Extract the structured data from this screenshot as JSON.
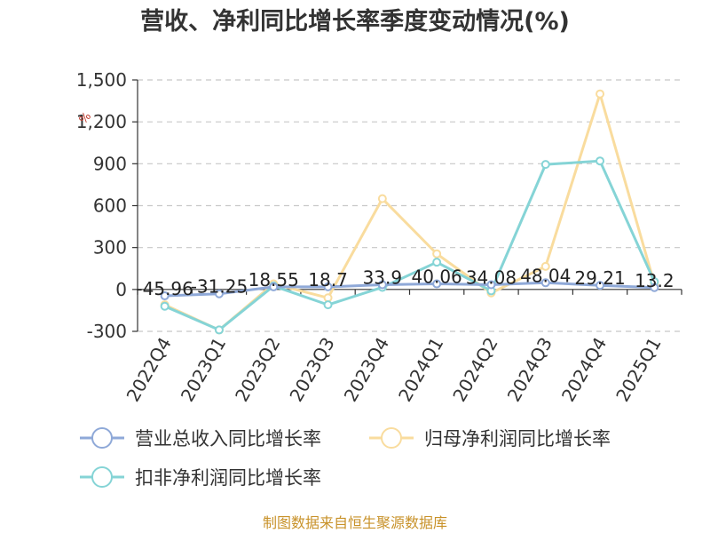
{
  "chart_data": {
    "type": "line",
    "title": "营收、净利同比增长率季度变动情况(%)",
    "unit_label": "%",
    "categories": [
      "2022Q4",
      "2023Q1",
      "2023Q2",
      "2023Q3",
      "2023Q4",
      "2024Q1",
      "2024Q2",
      "2024Q3",
      "2024Q4",
      "2025Q1"
    ],
    "ylim": [
      -300,
      1500
    ],
    "yticks": [
      -300,
      0,
      300,
      600,
      900,
      1200,
      1500
    ],
    "ytick_labels": [
      "-300",
      "0",
      "300",
      "600",
      "900",
      "1,200",
      "1,500"
    ],
    "grid": true,
    "series": [
      {
        "name": "营业总收入同比增长率",
        "color": "#8fa9d8",
        "values": [
          -45.96,
          -31.25,
          18.55,
          18.7,
          33.9,
          40.06,
          34.08,
          48.04,
          29.21,
          13.2
        ],
        "labels": [
          "-45.96",
          "-31.25",
          "18.55",
          "18.7",
          "33.9",
          "40.06",
          "34.08",
          "48.04",
          "29.21",
          "13.2"
        ]
      },
      {
        "name": "归母净利润同比增长率",
        "color": "#f9dc9e",
        "values": [
          -110,
          -290,
          40,
          -60,
          650,
          255,
          -25,
          165,
          1400,
          40
        ]
      },
      {
        "name": "扣非净利润同比增长率",
        "color": "#85d4d6",
        "values": [
          -120,
          -290,
          25,
          -110,
          15,
          195,
          -10,
          895,
          920,
          55
        ]
      }
    ],
    "source": "制图数据来自恒生聚源数据库"
  }
}
